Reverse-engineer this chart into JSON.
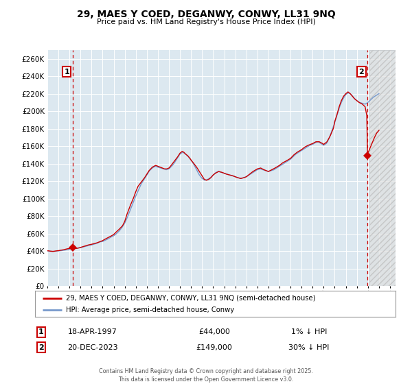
{
  "title": "29, MAES Y COED, DEGANWY, CONWY, LL31 9NQ",
  "subtitle": "Price paid vs. HM Land Registry's House Price Index (HPI)",
  "legend_line1": "29, MAES Y COED, DEGANWY, CONWY, LL31 9NQ (semi-detached house)",
  "legend_line2": "HPI: Average price, semi-detached house, Conwy",
  "sale1_date": "18-APR-1997",
  "sale1_price": 44000,
  "sale1_hpi": "1% ↓ HPI",
  "sale2_date": "20-DEC-2023",
  "sale2_price": 149000,
  "sale2_hpi": "30% ↓ HPI",
  "sale1_date_num": 1997.3,
  "sale2_date_num": 2023.97,
  "plot_color_red": "#cc0000",
  "plot_color_blue": "#7799cc",
  "background_color": "#dce8f0",
  "grid_color": "#ffffff",
  "ylim_min": 0,
  "ylim_max": 270000,
  "xlim_min": 1995.0,
  "xlim_max": 2026.5,
  "footer": "Contains HM Land Registry data © Crown copyright and database right 2025.\nThis data is licensed under the Open Government Licence v3.0.",
  "hpi_data": [
    [
      1995.0,
      40200
    ],
    [
      1995.25,
      39800
    ],
    [
      1995.5,
      39600
    ],
    [
      1995.75,
      40000
    ],
    [
      1996.0,
      40300
    ],
    [
      1996.25,
      40500
    ],
    [
      1996.5,
      41000
    ],
    [
      1996.75,
      41500
    ],
    [
      1997.0,
      42000
    ],
    [
      1997.3,
      44500
    ],
    [
      1997.5,
      43000
    ],
    [
      1997.75,
      43500
    ],
    [
      1998.0,
      44000
    ],
    [
      1998.25,
      44800
    ],
    [
      1998.5,
      45500
    ],
    [
      1998.75,
      46500
    ],
    [
      1999.0,
      47000
    ],
    [
      1999.25,
      48000
    ],
    [
      1999.5,
      49000
    ],
    [
      1999.75,
      50500
    ],
    [
      2000.0,
      51000
    ],
    [
      2000.25,
      52500
    ],
    [
      2000.5,
      54000
    ],
    [
      2000.75,
      56000
    ],
    [
      2001.0,
      57500
    ],
    [
      2001.25,
      60000
    ],
    [
      2001.5,
      63000
    ],
    [
      2001.75,
      67000
    ],
    [
      2002.0,
      72000
    ],
    [
      2002.25,
      79000
    ],
    [
      2002.5,
      87000
    ],
    [
      2002.75,
      95000
    ],
    [
      2003.0,
      103000
    ],
    [
      2003.25,
      110000
    ],
    [
      2003.5,
      117000
    ],
    [
      2003.75,
      122000
    ],
    [
      2004.0,
      127000
    ],
    [
      2004.25,
      132000
    ],
    [
      2004.5,
      135000
    ],
    [
      2004.75,
      137000
    ],
    [
      2005.0,
      136000
    ],
    [
      2005.25,
      135000
    ],
    [
      2005.5,
      134000
    ],
    [
      2005.75,
      133000
    ],
    [
      2006.0,
      134000
    ],
    [
      2006.25,
      137000
    ],
    [
      2006.5,
      141000
    ],
    [
      2006.75,
      146000
    ],
    [
      2007.0,
      151000
    ],
    [
      2007.25,
      153000
    ],
    [
      2007.5,
      151000
    ],
    [
      2007.75,
      148000
    ],
    [
      2008.0,
      144000
    ],
    [
      2008.25,
      139000
    ],
    [
      2008.5,
      133000
    ],
    [
      2008.75,
      127000
    ],
    [
      2009.0,
      123000
    ],
    [
      2009.25,
      121000
    ],
    [
      2009.5,
      122000
    ],
    [
      2009.75,
      124000
    ],
    [
      2010.0,
      127000
    ],
    [
      2010.25,
      130000
    ],
    [
      2010.5,
      131000
    ],
    [
      2010.75,
      130000
    ],
    [
      2011.0,
      129000
    ],
    [
      2011.25,
      128000
    ],
    [
      2011.5,
      127000
    ],
    [
      2011.75,
      126000
    ],
    [
      2012.0,
      125000
    ],
    [
      2012.25,
      124000
    ],
    [
      2012.5,
      123000
    ],
    [
      2012.75,
      124000
    ],
    [
      2013.0,
      125000
    ],
    [
      2013.25,
      127000
    ],
    [
      2013.5,
      129000
    ],
    [
      2013.75,
      131000
    ],
    [
      2014.0,
      133000
    ],
    [
      2014.25,
      134000
    ],
    [
      2014.5,
      133000
    ],
    [
      2014.75,
      132000
    ],
    [
      2015.0,
      131000
    ],
    [
      2015.25,
      132000
    ],
    [
      2015.5,
      133000
    ],
    [
      2015.75,
      135000
    ],
    [
      2016.0,
      137000
    ],
    [
      2016.25,
      139000
    ],
    [
      2016.5,
      141000
    ],
    [
      2016.75,
      143000
    ],
    [
      2017.0,
      145000
    ],
    [
      2017.25,
      148000
    ],
    [
      2017.5,
      151000
    ],
    [
      2017.75,
      153000
    ],
    [
      2018.0,
      155000
    ],
    [
      2018.25,
      157000
    ],
    [
      2018.5,
      159000
    ],
    [
      2018.75,
      161000
    ],
    [
      2019.0,
      162000
    ],
    [
      2019.25,
      164000
    ],
    [
      2019.5,
      165000
    ],
    [
      2019.75,
      163000
    ],
    [
      2020.0,
      161000
    ],
    [
      2020.25,
      163000
    ],
    [
      2020.5,
      169000
    ],
    [
      2020.75,
      178000
    ],
    [
      2021.0,
      187000
    ],
    [
      2021.25,
      197000
    ],
    [
      2021.5,
      207000
    ],
    [
      2021.75,
      214000
    ],
    [
      2022.0,
      219000
    ],
    [
      2022.25,
      221000
    ],
    [
      2022.5,
      219000
    ],
    [
      2022.75,
      215000
    ],
    [
      2023.0,
      212000
    ],
    [
      2023.25,
      210000
    ],
    [
      2023.5,
      209000
    ],
    [
      2023.75,
      208000
    ],
    [
      2024.0,
      210000
    ],
    [
      2024.25,
      213000
    ],
    [
      2024.5,
      216000
    ],
    [
      2024.75,
      218000
    ],
    [
      2025.0,
      220000
    ]
  ],
  "price_data": [
    [
      1995.0,
      40500
    ],
    [
      1995.1,
      40300
    ],
    [
      1995.2,
      40100
    ],
    [
      1995.3,
      39900
    ],
    [
      1995.4,
      39800
    ],
    [
      1995.5,
      39700
    ],
    [
      1995.6,
      39800
    ],
    [
      1995.7,
      40000
    ],
    [
      1995.8,
      40200
    ],
    [
      1995.9,
      40400
    ],
    [
      1996.0,
      40500
    ],
    [
      1996.1,
      40700
    ],
    [
      1996.2,
      41000
    ],
    [
      1996.3,
      41200
    ],
    [
      1996.4,
      41400
    ],
    [
      1996.5,
      41600
    ],
    [
      1996.6,
      42000
    ],
    [
      1996.7,
      42300
    ],
    [
      1996.8,
      42600
    ],
    [
      1996.9,
      42800
    ],
    [
      1997.0,
      43000
    ],
    [
      1997.15,
      43500
    ],
    [
      1997.3,
      44000
    ],
    [
      1997.4,
      43500
    ],
    [
      1997.5,
      43200
    ],
    [
      1997.6,
      43000
    ],
    [
      1997.7,
      43200
    ],
    [
      1997.8,
      43500
    ],
    [
      1997.9,
      43800
    ],
    [
      1998.0,
      44200
    ],
    [
      1998.1,
      44600
    ],
    [
      1998.2,
      45000
    ],
    [
      1998.3,
      45400
    ],
    [
      1998.5,
      46200
    ],
    [
      1998.7,
      47000
    ],
    [
      1999.0,
      47800
    ],
    [
      1999.2,
      48500
    ],
    [
      1999.5,
      49500
    ],
    [
      1999.8,
      51000
    ],
    [
      2000.0,
      52000
    ],
    [
      2000.2,
      53500
    ],
    [
      2000.5,
      55500
    ],
    [
      2000.8,
      57500
    ],
    [
      2001.0,
      59000
    ],
    [
      2001.2,
      61500
    ],
    [
      2001.5,
      65000
    ],
    [
      2001.8,
      69000
    ],
    [
      2002.0,
      74000
    ],
    [
      2002.2,
      82000
    ],
    [
      2002.5,
      92000
    ],
    [
      2002.8,
      101000
    ],
    [
      2003.0,
      108000
    ],
    [
      2003.2,
      114000
    ],
    [
      2003.5,
      119000
    ],
    [
      2003.8,
      124000
    ],
    [
      2004.0,
      128000
    ],
    [
      2004.2,
      132000
    ],
    [
      2004.5,
      136000
    ],
    [
      2004.8,
      138000
    ],
    [
      2005.0,
      137000
    ],
    [
      2005.2,
      136000
    ],
    [
      2005.4,
      135000
    ],
    [
      2005.6,
      134000
    ],
    [
      2005.8,
      134000
    ],
    [
      2006.0,
      135000
    ],
    [
      2006.2,
      138000
    ],
    [
      2006.5,
      143000
    ],
    [
      2006.8,
      148000
    ],
    [
      2007.0,
      152000
    ],
    [
      2007.2,
      154000
    ],
    [
      2007.35,
      153000
    ],
    [
      2007.5,
      151000
    ],
    [
      2007.7,
      149000
    ],
    [
      2007.9,
      146000
    ],
    [
      2008.0,
      144000
    ],
    [
      2008.2,
      141000
    ],
    [
      2008.5,
      136000
    ],
    [
      2008.8,
      130000
    ],
    [
      2009.0,
      126000
    ],
    [
      2009.2,
      122000
    ],
    [
      2009.4,
      121000
    ],
    [
      2009.6,
      122000
    ],
    [
      2009.8,
      124000
    ],
    [
      2010.0,
      127000
    ],
    [
      2010.2,
      129000
    ],
    [
      2010.5,
      131000
    ],
    [
      2010.8,
      130000
    ],
    [
      2011.0,
      129000
    ],
    [
      2011.2,
      128000
    ],
    [
      2011.5,
      127000
    ],
    [
      2011.8,
      126000
    ],
    [
      2012.0,
      125000
    ],
    [
      2012.2,
      124000
    ],
    [
      2012.5,
      123000
    ],
    [
      2012.8,
      124000
    ],
    [
      2013.0,
      125000
    ],
    [
      2013.3,
      128000
    ],
    [
      2013.6,
      131000
    ],
    [
      2014.0,
      134000
    ],
    [
      2014.3,
      135000
    ],
    [
      2014.6,
      133000
    ],
    [
      2015.0,
      131000
    ],
    [
      2015.3,
      133000
    ],
    [
      2015.6,
      135000
    ],
    [
      2016.0,
      138000
    ],
    [
      2016.3,
      141000
    ],
    [
      2016.6,
      143000
    ],
    [
      2017.0,
      146000
    ],
    [
      2017.3,
      150000
    ],
    [
      2017.6,
      153000
    ],
    [
      2018.0,
      156000
    ],
    [
      2018.3,
      159000
    ],
    [
      2018.6,
      161000
    ],
    [
      2019.0,
      163000
    ],
    [
      2019.3,
      165000
    ],
    [
      2019.6,
      165000
    ],
    [
      2019.9,
      163000
    ],
    [
      2020.0,
      162000
    ],
    [
      2020.3,
      165000
    ],
    [
      2020.6,
      172000
    ],
    [
      2020.9,
      181000
    ],
    [
      2021.0,
      188000
    ],
    [
      2021.2,
      196000
    ],
    [
      2021.4,
      205000
    ],
    [
      2021.6,
      212000
    ],
    [
      2021.8,
      217000
    ],
    [
      2022.0,
      220000
    ],
    [
      2022.2,
      222000
    ],
    [
      2022.4,
      220000
    ],
    [
      2022.6,
      217000
    ],
    [
      2022.8,
      214000
    ],
    [
      2023.0,
      212000
    ],
    [
      2023.2,
      210000
    ],
    [
      2023.5,
      208000
    ],
    [
      2023.75,
      205000
    ],
    [
      2023.9,
      195000
    ],
    [
      2023.97,
      149000
    ],
    [
      2024.0,
      152000
    ],
    [
      2024.2,
      158000
    ],
    [
      2024.4,
      164000
    ],
    [
      2024.6,
      170000
    ],
    [
      2024.8,
      175000
    ],
    [
      2025.0,
      178000
    ]
  ]
}
